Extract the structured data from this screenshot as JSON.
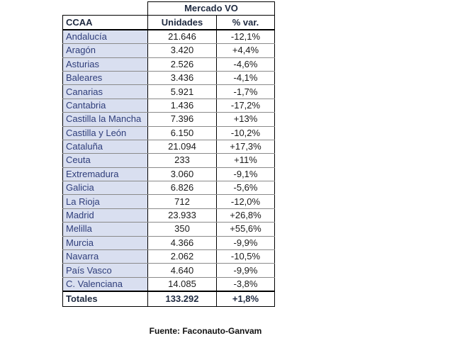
{
  "table": {
    "group_header": "Mercado VO",
    "columns": [
      "CCAA",
      "Unidades",
      "% var."
    ],
    "rows": [
      [
        "Andalucía",
        "21.646",
        "-12,1%"
      ],
      [
        "Aragón",
        "3.420",
        "+4,4%"
      ],
      [
        "Asturias",
        "2.526",
        "-4,6%"
      ],
      [
        "Baleares",
        "3.436",
        "-4,1%"
      ],
      [
        "Canarias",
        "5.921",
        "-1,7%"
      ],
      [
        "Cantabria",
        "1.436",
        "-17,2%"
      ],
      [
        "Castilla la Mancha",
        "7.396",
        "+13%"
      ],
      [
        "Castilla y León",
        "6.150",
        "-10,2%"
      ],
      [
        "Cataluña",
        "21.094",
        "+17,3%"
      ],
      [
        "Ceuta",
        "233",
        "+11%"
      ],
      [
        "Extremadura",
        "3.060",
        "-9,1%"
      ],
      [
        "Galicia",
        "6.826",
        "-5,6%"
      ],
      [
        "La Rioja",
        "712",
        "-12,0%"
      ],
      [
        "Madrid",
        "23.933",
        "+26,8%"
      ],
      [
        "Melilla",
        "350",
        "+55,6%"
      ],
      [
        "Murcia",
        "4.366",
        "-9,9%"
      ],
      [
        "Navarra",
        "2.062",
        "-10,5%"
      ],
      [
        "País Vasco",
        "4.640",
        "-9,9%"
      ],
      [
        "C. Valenciana",
        "14.085",
        "-3,8%"
      ]
    ],
    "total": [
      "Totales",
      "133.292",
      "+1,8%"
    ]
  },
  "source": "Fuente: Faconauto-Ganvam",
  "colors": {
    "region_fill": "#d9dff0",
    "region_text": "#2e3d7a",
    "header_text": "#1f2a40"
  }
}
